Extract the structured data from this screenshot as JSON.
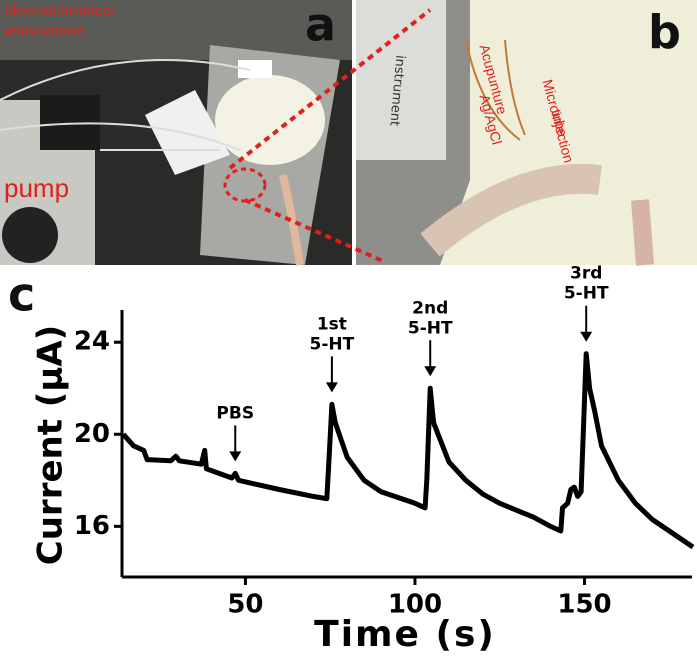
{
  "panels": {
    "a": "a",
    "b": "b",
    "c": "c"
  },
  "photo_a": {
    "labels": [
      "electrochemical",
      "workstation",
      "pump"
    ]
  },
  "photo_b": {
    "labels": [
      "Acupunture",
      "Ag/AgCl",
      "Microinjection",
      "tube",
      "instrument"
    ]
  },
  "chart_data": {
    "type": "line",
    "xlabel": "Time (s)",
    "ylabel": "Current (μA)",
    "x": [
      14,
      17,
      20,
      21,
      28,
      29.5,
      30.5,
      37,
      38,
      38.5,
      46,
      47,
      48,
      60,
      70,
      74,
      74.5,
      75.5,
      76.5,
      80,
      85,
      90,
      100,
      103,
      103.5,
      104.5,
      105.5,
      110,
      115,
      120,
      125,
      130,
      135,
      140,
      143,
      143.5,
      145,
      146,
      147,
      148,
      149,
      150.5,
      151.5,
      153,
      155,
      160,
      165,
      170,
      175,
      180,
      182
    ],
    "values": [
      20.0,
      19.5,
      19.3,
      18.9,
      18.85,
      19.05,
      18.85,
      18.7,
      19.3,
      18.5,
      18.1,
      18.3,
      18.0,
      17.6,
      17.3,
      17.2,
      18.5,
      21.3,
      20.5,
      19.0,
      18.0,
      17.5,
      17.0,
      16.8,
      18.0,
      22.0,
      20.5,
      18.8,
      18.0,
      17.4,
      17.0,
      16.7,
      16.4,
      16.0,
      15.8,
      16.8,
      17.0,
      17.6,
      17.7,
      17.3,
      17.5,
      23.5,
      22.0,
      21.0,
      19.5,
      18.0,
      17.0,
      16.3,
      15.8,
      15.3,
      15.1
    ],
    "color": "#000000",
    "xlim": [
      13.6,
      181.7
    ],
    "xticks": [
      50,
      100,
      150
    ],
    "ylim": [
      13.8,
      25.4
    ],
    "yticks": [
      16,
      20,
      24
    ],
    "annotations": [
      {
        "x": 47,
        "text": [
          "PBS"
        ]
      },
      {
        "x": 75.5,
        "text": [
          "1st",
          "5-HT"
        ]
      },
      {
        "x": 104.5,
        "text": [
          "2nd",
          "5-HT"
        ]
      },
      {
        "x": 150.5,
        "text": [
          "3rd",
          "5-HT"
        ]
      }
    ]
  }
}
